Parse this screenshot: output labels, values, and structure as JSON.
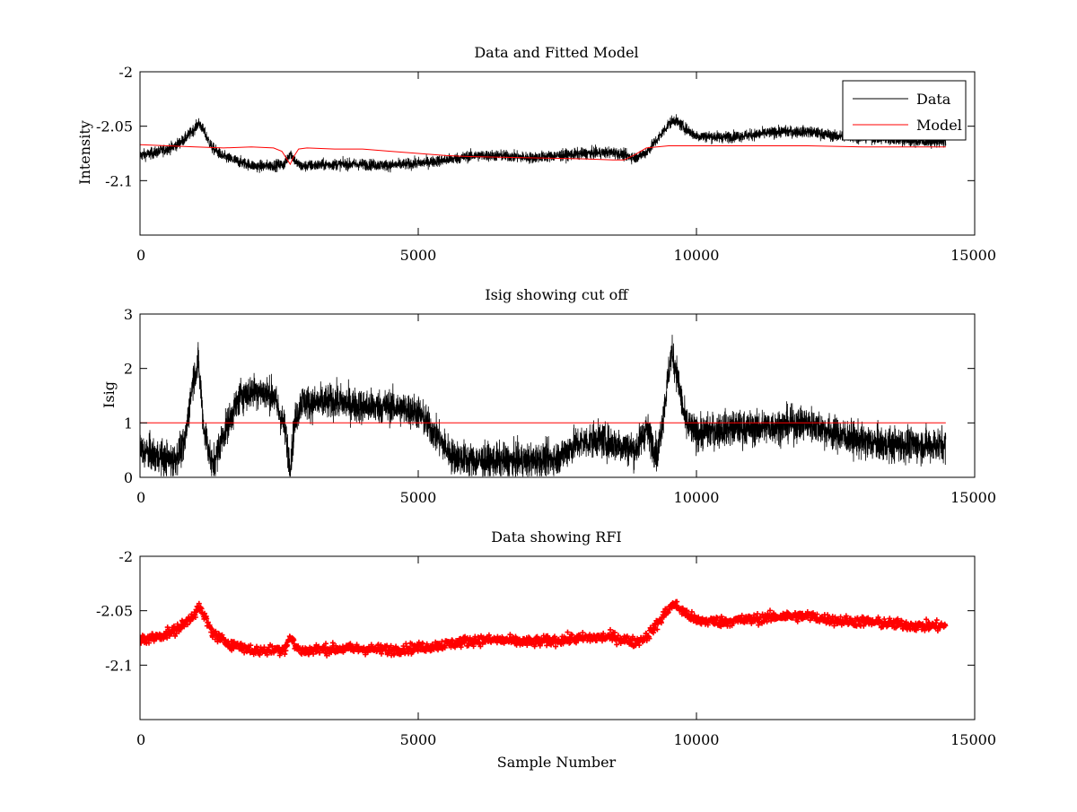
{
  "chart_data": [
    {
      "type": "line",
      "title": "Data and Fitted Model",
      "xlabel": "",
      "ylabel": "Intensity",
      "xlim": [
        0,
        15000
      ],
      "ylim": [
        -2.15,
        -2.0
      ],
      "xticks": [
        0,
        5000,
        10000,
        15000
      ],
      "xtick_labels": [
        "0",
        "5000",
        "10000",
        "15000"
      ],
      "yticks": [
        -2.1,
        -2.05,
        -2.0
      ],
      "ytick_labels": [
        "-2.1",
        "-2.05",
        "-2"
      ],
      "grid": false,
      "legend": {
        "position": "top-right",
        "entries": [
          "Data",
          "Model"
        ]
      },
      "series": [
        {
          "name": "Data",
          "color": "#000000",
          "noise": 0.009,
          "x": [
            0,
            300,
            600,
            800,
            1000,
            1050,
            1100,
            1300,
            1500,
            1800,
            2100,
            2400,
            2600,
            2700,
            2800,
            2900,
            3100,
            3500,
            4000,
            4500,
            5000,
            5500,
            6000,
            6500,
            7000,
            7500,
            8000,
            8500,
            8900,
            9100,
            9300,
            9500,
            9600,
            9800,
            10000,
            10500,
            11000,
            11500,
            11800,
            12000,
            12500,
            13000,
            13500,
            14000,
            14480
          ],
          "values": [
            -2.077,
            -2.074,
            -2.069,
            -2.062,
            -2.051,
            -2.047,
            -2.05,
            -2.07,
            -2.078,
            -2.083,
            -2.087,
            -2.086,
            -2.085,
            -2.074,
            -2.083,
            -2.087,
            -2.086,
            -2.085,
            -2.085,
            -2.086,
            -2.084,
            -2.081,
            -2.077,
            -2.077,
            -2.079,
            -2.077,
            -2.075,
            -2.074,
            -2.079,
            -2.074,
            -2.062,
            -2.048,
            -2.044,
            -2.052,
            -2.059,
            -2.06,
            -2.058,
            -2.055,
            -2.055,
            -2.055,
            -2.059,
            -2.06,
            -2.062,
            -2.064,
            -2.064
          ]
        },
        {
          "name": "Model",
          "color": "#ff0000",
          "noise": 0,
          "x": [
            0,
            500,
            1000,
            1500,
            2000,
            2400,
            2550,
            2650,
            2700,
            2750,
            2850,
            3000,
            3500,
            4000,
            4500,
            5000,
            5500,
            6000,
            7000,
            8000,
            8500,
            8700,
            8900,
            9100,
            9500,
            10000,
            11000,
            12000,
            13000,
            14000,
            14480
          ],
          "values": [
            -2.067,
            -2.068,
            -2.069,
            -2.07,
            -2.069,
            -2.07,
            -2.073,
            -2.081,
            -2.085,
            -2.079,
            -2.071,
            -2.07,
            -2.071,
            -2.071,
            -2.073,
            -2.075,
            -2.077,
            -2.078,
            -2.079,
            -2.08,
            -2.081,
            -2.081,
            -2.076,
            -2.07,
            -2.068,
            -2.068,
            -2.068,
            -2.068,
            -2.069,
            -2.069,
            -2.069
          ]
        }
      ]
    },
    {
      "type": "line",
      "title": "Isig showing cut off",
      "xlabel": "",
      "ylabel": "Isig",
      "xlim": [
        0,
        15000
      ],
      "ylim": [
        0,
        3
      ],
      "xticks": [
        0,
        5000,
        10000,
        15000
      ],
      "xtick_labels": [
        "0",
        "5000",
        "10000",
        "15000"
      ],
      "yticks": [
        0,
        1,
        2,
        3
      ],
      "ytick_labels": [
        "0",
        "1",
        "2",
        "3"
      ],
      "grid": false,
      "series": [
        {
          "color": "#000000",
          "noise": 0.55,
          "x": [
            0,
            300,
            600,
            800,
            950,
            1050,
            1150,
            1300,
            1500,
            1800,
            2100,
            2400,
            2600,
            2700,
            2780,
            2900,
            3100,
            3500,
            4000,
            4500,
            5000,
            5300,
            5600,
            6000,
            6500,
            7000,
            7500,
            7800,
            8200,
            8600,
            8900,
            9100,
            9300,
            9450,
            9550,
            9650,
            9800,
            10000,
            10500,
            11000,
            11500,
            12000,
            12500,
            13000,
            13500,
            14000,
            14480
          ],
          "values": [
            0.5,
            0.4,
            0.3,
            0.6,
            1.8,
            2.1,
            0.9,
            0.2,
            0.8,
            1.5,
            1.6,
            1.5,
            0.9,
            0.2,
            1.0,
            1.4,
            1.35,
            1.4,
            1.3,
            1.3,
            1.2,
            0.8,
            0.4,
            0.3,
            0.3,
            0.3,
            0.35,
            0.6,
            0.7,
            0.6,
            0.5,
            0.9,
            0.4,
            1.5,
            2.3,
            1.9,
            1.0,
            0.8,
            0.9,
            0.9,
            0.95,
            1.0,
            0.8,
            0.65,
            0.6,
            0.6,
            0.6
          ]
        },
        {
          "color": "#ff0000",
          "noise": 0,
          "x": [
            0,
            14480
          ],
          "values": [
            1,
            1
          ]
        }
      ]
    },
    {
      "type": "scatter",
      "title": "Data showing RFI",
      "xlabel": "Sample Number",
      "ylabel": "",
      "xlim": [
        0,
        15000
      ],
      "ylim": [
        -2.15,
        -2.0
      ],
      "xticks": [
        0,
        5000,
        10000,
        15000
      ],
      "xtick_labels": [
        "0",
        "5000",
        "10000",
        "15000"
      ],
      "yticks": [
        -2.1,
        -2.05,
        -2.0
      ],
      "ytick_labels": [
        "-2.1",
        "-2.05",
        "-2"
      ],
      "grid": false,
      "series": [
        {
          "color": "#ff0000",
          "noise": 0.008,
          "marker": "plus",
          "x": [
            0,
            300,
            600,
            800,
            1000,
            1050,
            1100,
            1300,
            1500,
            1800,
            2100,
            2400,
            2600,
            2700,
            2800,
            2900,
            3100,
            3500,
            4000,
            4500,
            5000,
            5500,
            6000,
            6500,
            7000,
            7500,
            8000,
            8500,
            8900,
            9100,
            9300,
            9500,
            9600,
            9800,
            10000,
            10500,
            11000,
            11500,
            11800,
            12000,
            12500,
            13000,
            13500,
            14000,
            14480
          ],
          "values": [
            -2.077,
            -2.074,
            -2.069,
            -2.062,
            -2.051,
            -2.047,
            -2.05,
            -2.07,
            -2.078,
            -2.083,
            -2.087,
            -2.086,
            -2.085,
            -2.074,
            -2.083,
            -2.087,
            -2.086,
            -2.085,
            -2.085,
            -2.086,
            -2.084,
            -2.081,
            -2.077,
            -2.077,
            -2.079,
            -2.077,
            -2.075,
            -2.074,
            -2.079,
            -2.074,
            -2.062,
            -2.048,
            -2.044,
            -2.052,
            -2.059,
            -2.06,
            -2.058,
            -2.055,
            -2.055,
            -2.055,
            -2.059,
            -2.06,
            -2.062,
            -2.064,
            -2.064
          ]
        }
      ]
    }
  ]
}
